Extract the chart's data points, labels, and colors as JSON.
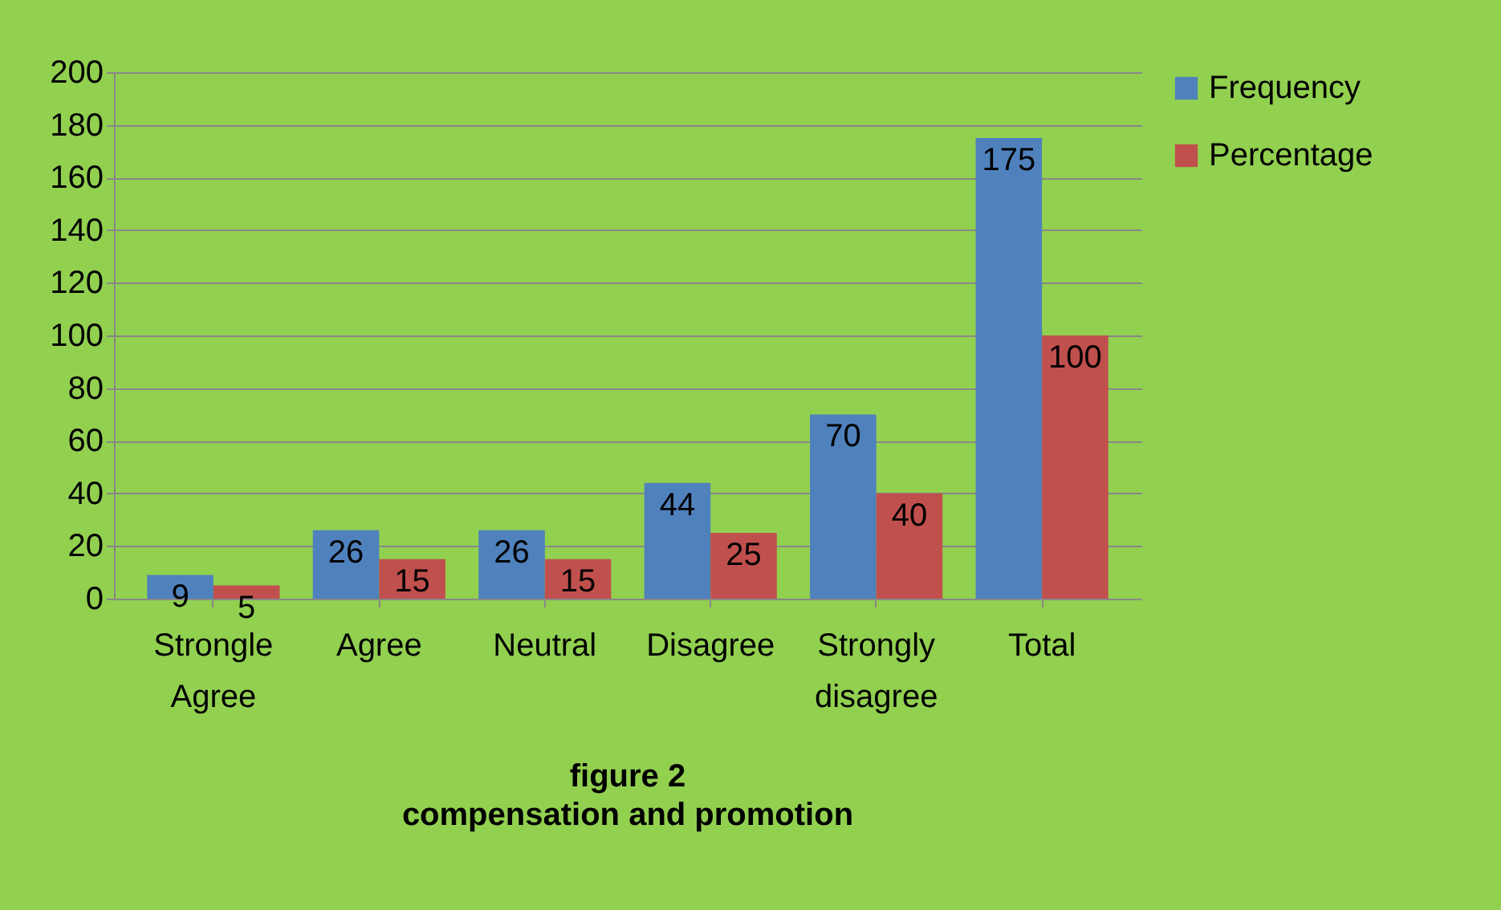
{
  "chart_data": {
    "type": "bar",
    "title": "figure 2",
    "subtitle": "compensation and promotion",
    "categories": [
      "Strongle Agree",
      "Agree",
      "Neutral",
      "Disagree",
      "Strongly disagree",
      "Total"
    ],
    "series": [
      {
        "name": "Frequency",
        "color": "#4f81bd",
        "values": [
          9,
          26,
          26,
          44,
          70,
          175
        ]
      },
      {
        "name": "Percentage",
        "color": "#c0504d",
        "values": [
          5,
          15,
          15,
          25,
          40,
          100
        ]
      }
    ],
    "ylim": [
      0,
      200
    ],
    "yticks": [
      0,
      20,
      40,
      60,
      80,
      100,
      120,
      140,
      160,
      180,
      200
    ],
    "grid": "y",
    "legend": "right",
    "data_labels": true
  }
}
